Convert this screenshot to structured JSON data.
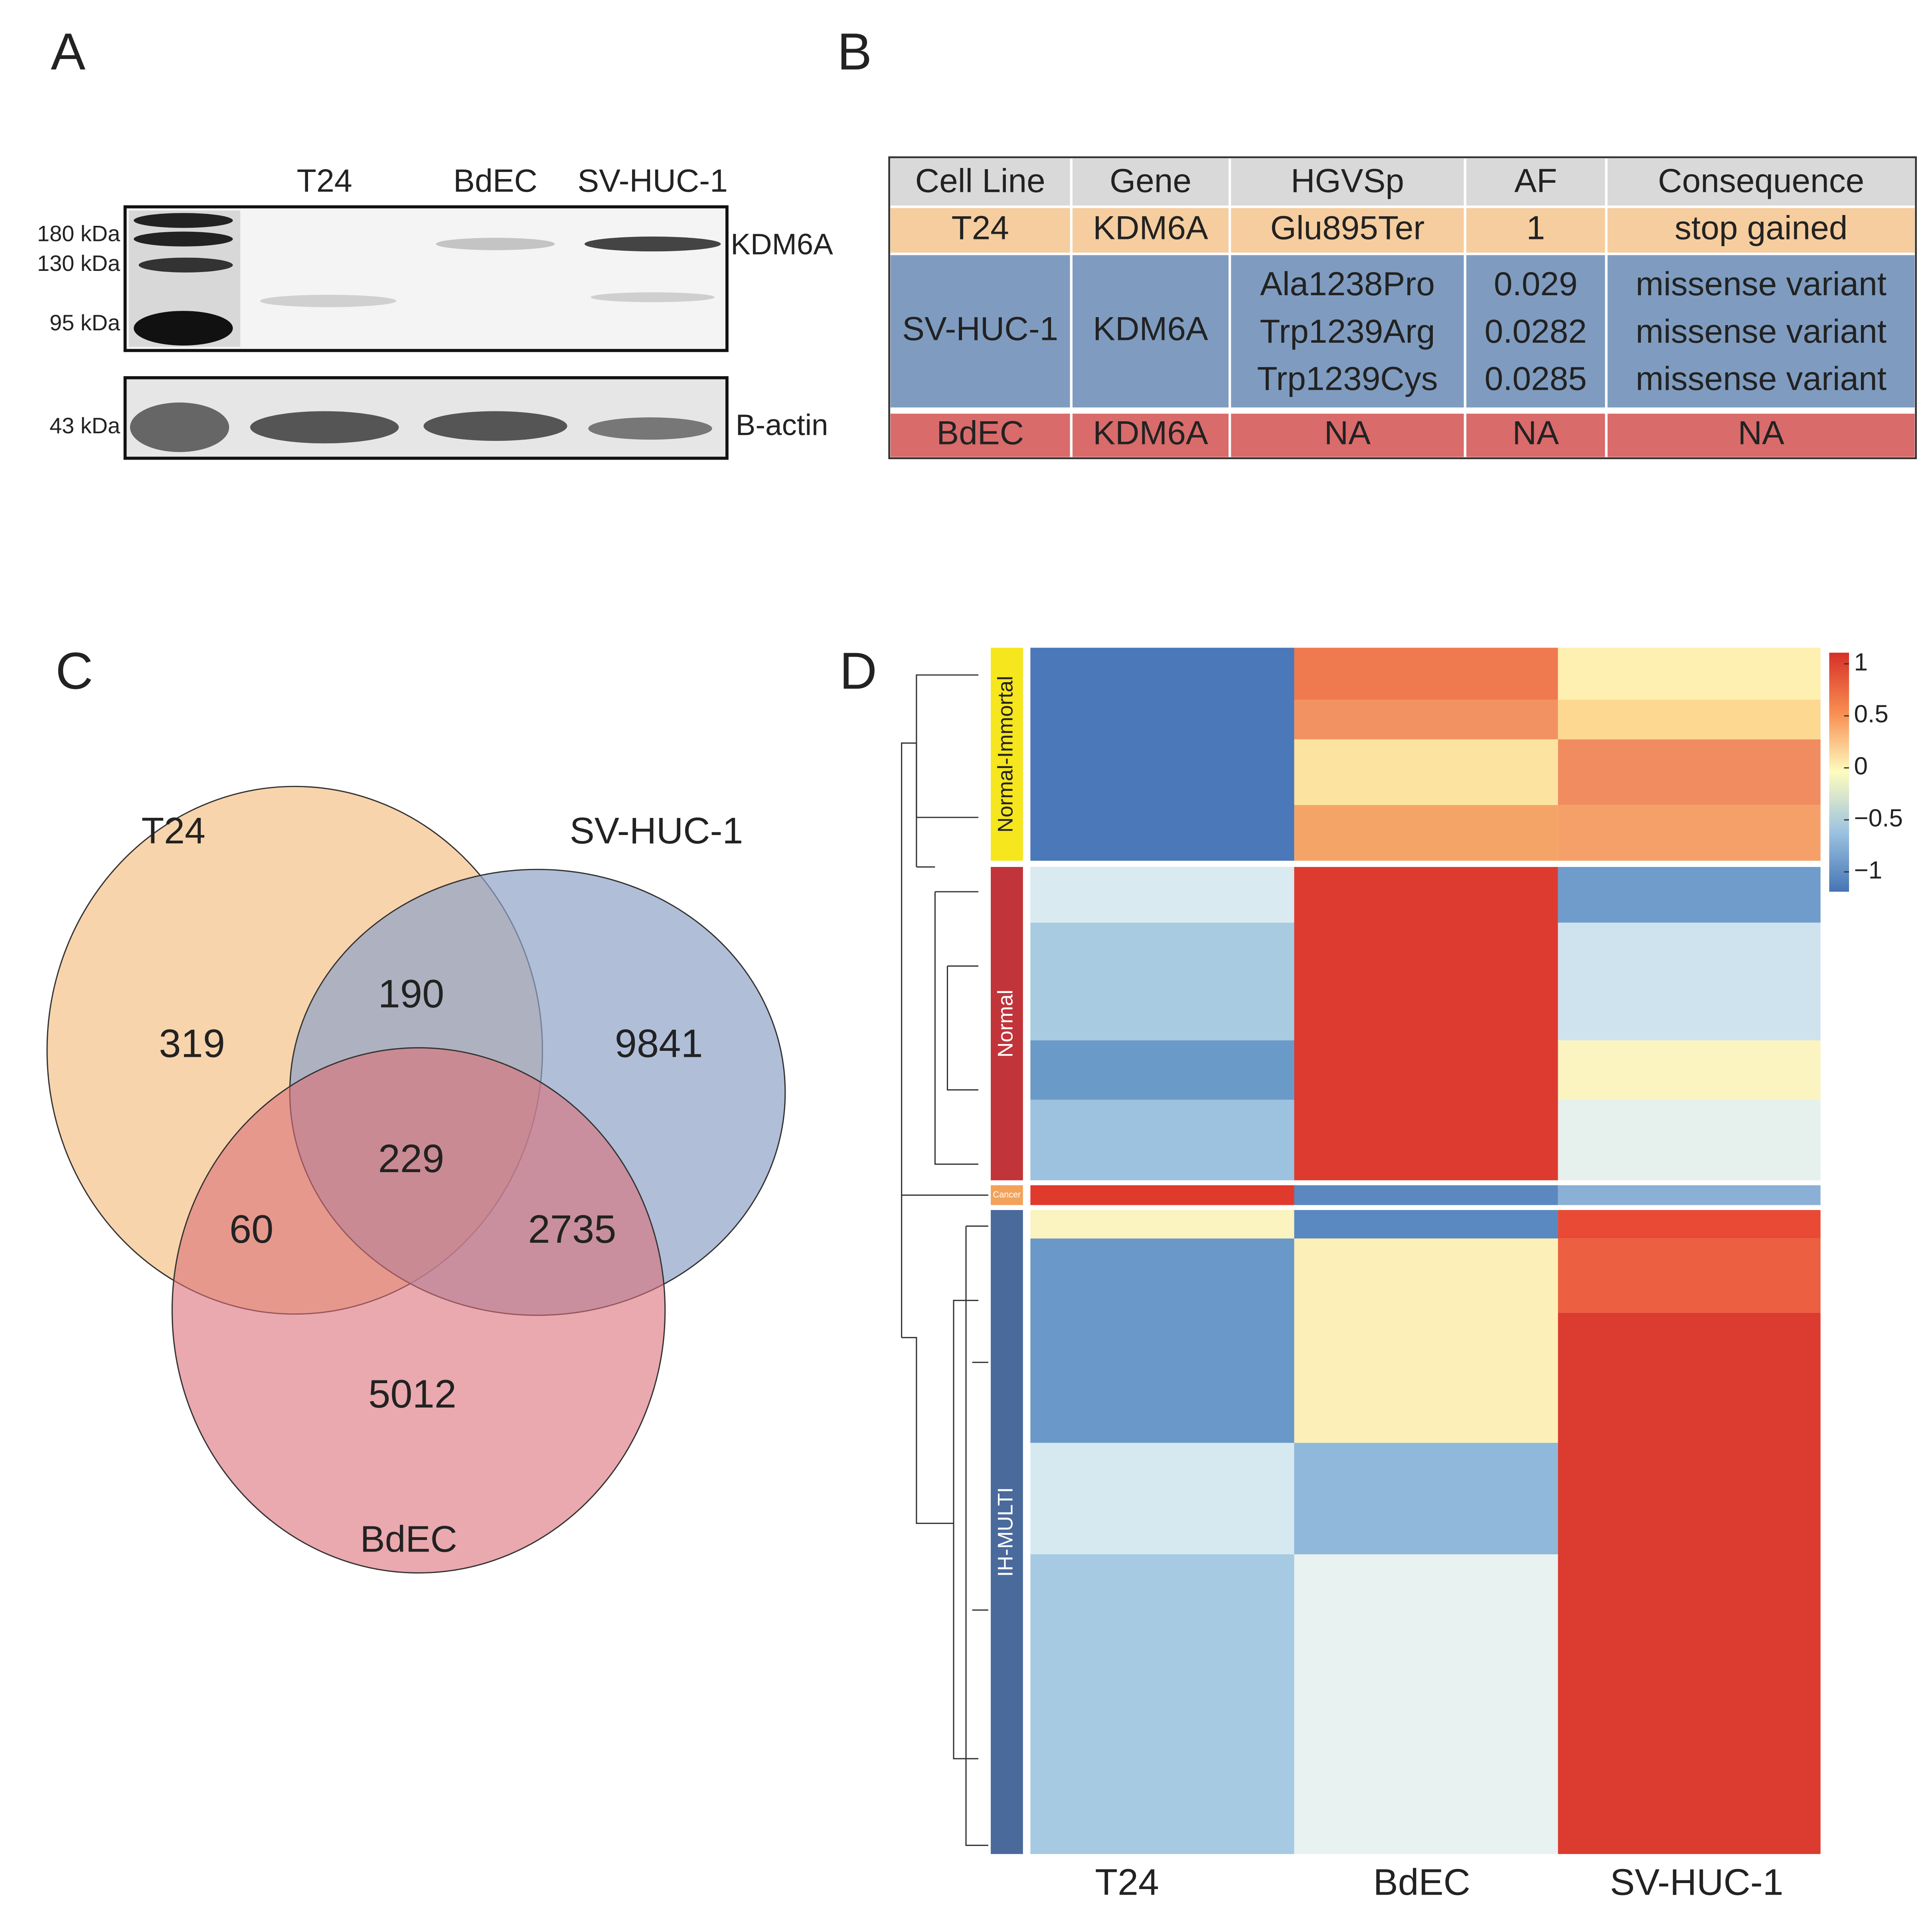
{
  "panels": [
    "A",
    "B",
    "C",
    "D"
  ],
  "western_blot": {
    "lanes": [
      "T24",
      "BdEC",
      "SV-HUC-1"
    ],
    "markers": [
      "180 kDa",
      "130 kDa",
      "95 kDa",
      "43 kDa"
    ],
    "proteins": [
      "KDM6A",
      "B-actin"
    ]
  },
  "table": {
    "header": [
      "Cell Line",
      "Gene",
      "HGVSp",
      "AF",
      "Consequence"
    ],
    "rows": [
      {
        "cell_line": "T24",
        "gene": "KDM6A",
        "hgvsp": [
          "Glu895Ter"
        ],
        "af": [
          1
        ],
        "consequence": [
          "stop gained"
        ]
      },
      {
        "cell_line": "SV-HUC-1",
        "gene": "KDM6A",
        "hgvsp": [
          "Ala1238Pro",
          "Trp1239Arg",
          "Trp1239Cys"
        ],
        "af": [
          0.029,
          0.0282,
          0.0285
        ],
        "consequence": [
          "missense variant",
          "missense variant",
          "missense variant"
        ]
      },
      {
        "cell_line": "BdEC",
        "gene": "KDM6A",
        "hgvsp": [
          "NA"
        ],
        "af": [
          "NA"
        ],
        "consequence": [
          "NA"
        ]
      }
    ]
  },
  "venn": {
    "sets": [
      "T24",
      "SV-HUC-1",
      "BdEC"
    ],
    "counts": [
      319,
      190,
      9841,
      229,
      60,
      2735,
      5012
    ]
  },
  "heatmap": {
    "columns": [
      "T24",
      "BdEC",
      "SV-HUC-1"
    ],
    "clusters": [
      "Normal-Immortal",
      "Normal",
      "Cancer",
      "IH-MULTI"
    ],
    "colorbar_ticks": [
      1,
      0.5,
      0,
      {
        "value": -0.5,
        "label": "−0.5"
      },
      {
        "value": -1,
        "label": "−1"
      }
    ]
  }
}
